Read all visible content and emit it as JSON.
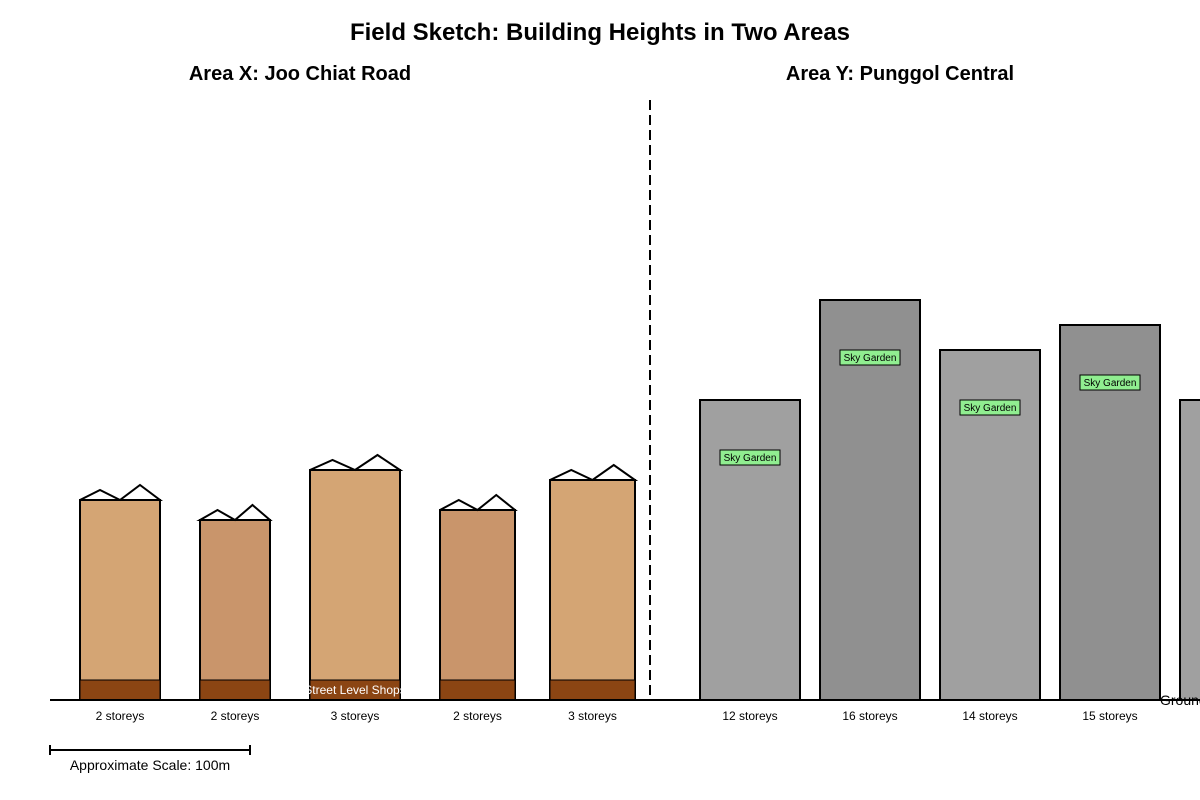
{
  "title": "Field Sketch: Building Heights in Two Areas",
  "area_x": {
    "label": "Area X: Joo Chiat Road",
    "buildings": [
      {
        "storeys": 2,
        "label": "2 storeys",
        "shops": true,
        "shop_label": "",
        "color": "#d4a574"
      },
      {
        "storeys": 2,
        "label": "2 storeys",
        "shops": true,
        "shop_label": "",
        "color": "#c9956b"
      },
      {
        "storeys": 3,
        "label": "3 storeys",
        "shops": true,
        "shop_label": "Street Level Shops",
        "color": "#d4a574"
      },
      {
        "storeys": 2,
        "label": "2 storeys",
        "shops": true,
        "shop_label": "",
        "color": "#c9956b"
      },
      {
        "storeys": 3,
        "label": "3 storeys",
        "shops": true,
        "shop_label": "",
        "color": "#d4a574"
      }
    ]
  },
  "area_y": {
    "label": "Area Y: Punggol Central",
    "buildings": [
      {
        "storeys": 12,
        "label": "12 storeys",
        "feature": "Sky Garden",
        "color": "#a0a0a0"
      },
      {
        "storeys": 16,
        "label": "16 storeys",
        "feature": "Sky Garden",
        "color": "#909090"
      },
      {
        "storeys": 14,
        "label": "14 storeys",
        "feature": "Sky Garden",
        "color": "#a0a0a0"
      },
      {
        "storeys": 15,
        "label": "15 storeys",
        "feature": "Sky Garden",
        "color": "#909090"
      },
      {
        "storeys": 12,
        "label": "",
        "feature": "",
        "color": "#a0a0a0"
      }
    ]
  },
  "ground_label": "Ground Level",
  "scale_label": "Approximate Scale: 100m",
  "colors": {
    "shop_band": "#8b4513",
    "sky_garden_fill": "#90ee90",
    "outline": "#000000",
    "divider": "#000000"
  }
}
